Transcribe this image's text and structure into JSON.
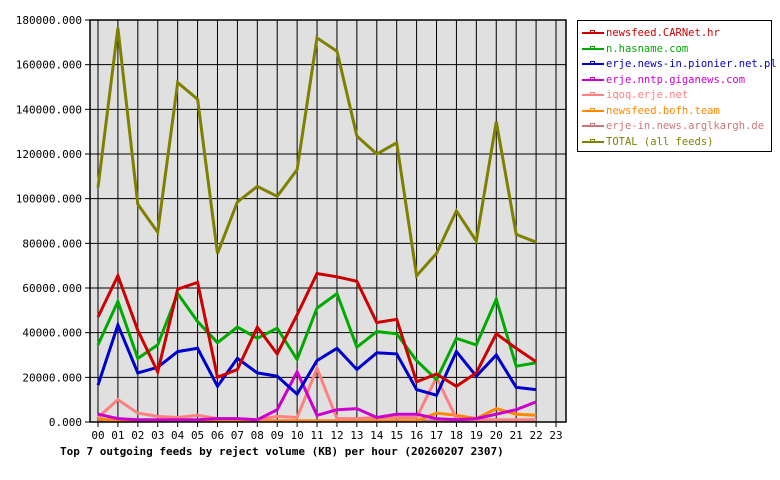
{
  "chart_data": {
    "type": "line",
    "title": "Top 7 outgoing feeds by reject volume (KB) per hour (20260207 2307)",
    "xlabel": "",
    "ylabel": "",
    "ylim": [
      0,
      180000
    ],
    "yticks": [
      "0.000",
      "20000.000",
      "40000.000",
      "60000.000",
      "80000.000",
      "100000.000",
      "120000.000",
      "140000.000",
      "160000.000",
      "180000.000"
    ],
    "categories": [
      "00",
      "01",
      "02",
      "03",
      "04",
      "05",
      "06",
      "07",
      "08",
      "09",
      "10",
      "11",
      "12",
      "13",
      "14",
      "15",
      "16",
      "17",
      "18",
      "19",
      "20",
      "21",
      "22",
      "23"
    ],
    "grid": true,
    "legend_position": "right",
    "series": [
      {
        "name": "newsfeed.CARNet.hr",
        "color": "#cc0000",
        "values": [
          47000,
          65500,
          41000,
          22500,
          59500,
          62500,
          20000,
          23500,
          42500,
          30500,
          48000,
          66500,
          65000,
          63000,
          44500,
          46000,
          18000,
          21500,
          16000,
          22000,
          39500,
          33000,
          27000,
          null
        ]
      },
      {
        "name": "n.hasname.com",
        "color": "#00aa00",
        "values": [
          34500,
          54000,
          28500,
          34500,
          57500,
          45000,
          35500,
          42500,
          37500,
          42000,
          28000,
          51000,
          57500,
          33500,
          40500,
          39500,
          27500,
          19000,
          37500,
          34500,
          55000,
          25000,
          26500,
          null
        ]
      },
      {
        "name": "erje.news-in.pionier.net.pl",
        "color": "#0000cc",
        "values": [
          16500,
          43500,
          22000,
          24500,
          31500,
          33000,
          16000,
          28500,
          22000,
          20500,
          12500,
          27500,
          33000,
          23500,
          31000,
          30500,
          14500,
          12000,
          31500,
          20500,
          30000,
          15500,
          14500,
          null
        ]
      },
      {
        "name": "erje.nntp.giganews.com",
        "color": "#cc00cc",
        "values": [
          3500,
          1500,
          1000,
          1000,
          1000,
          1000,
          1500,
          1500,
          1000,
          5500,
          22500,
          3000,
          5500,
          6000,
          2000,
          3500,
          3500,
          1500,
          1000,
          1500,
          3500,
          5500,
          9000,
          null
        ]
      },
      {
        "name": "iqoq.erje.net",
        "color": "#ff8080",
        "values": [
          2000,
          10000,
          4000,
          2500,
          2000,
          3000,
          1500,
          1500,
          1000,
          2500,
          2000,
          24000,
          1500,
          1500,
          2000,
          2000,
          2000,
          20000,
          1500,
          1000,
          1000,
          1000,
          1000,
          null
        ]
      },
      {
        "name": "newsfeed.bofh.team",
        "color": "#ff8800",
        "values": [
          1500,
          500,
          500,
          500,
          500,
          500,
          500,
          500,
          500,
          500,
          500,
          500,
          500,
          500,
          500,
          500,
          500,
          4000,
          3000,
          1500,
          6000,
          3500,
          3000,
          null
        ]
      },
      {
        "name": "erje-in.news.arglkargh.de",
        "color": "#cc7777",
        "values": [
          500,
          500,
          500,
          500,
          500,
          500,
          500,
          500,
          500,
          500,
          500,
          500,
          500,
          500,
          500,
          500,
          500,
          500,
          500,
          500,
          500,
          500,
          500,
          null
        ]
      },
      {
        "name": "TOTAL (all feeds)",
        "color": "#808000",
        "values": [
          105000,
          176500,
          97500,
          85000,
          152000,
          144500,
          75500,
          98500,
          105500,
          101000,
          113000,
          172000,
          166000,
          128000,
          120000,
          125000,
          65500,
          75500,
          94500,
          81000,
          134500,
          84000,
          80500,
          null
        ]
      }
    ]
  }
}
